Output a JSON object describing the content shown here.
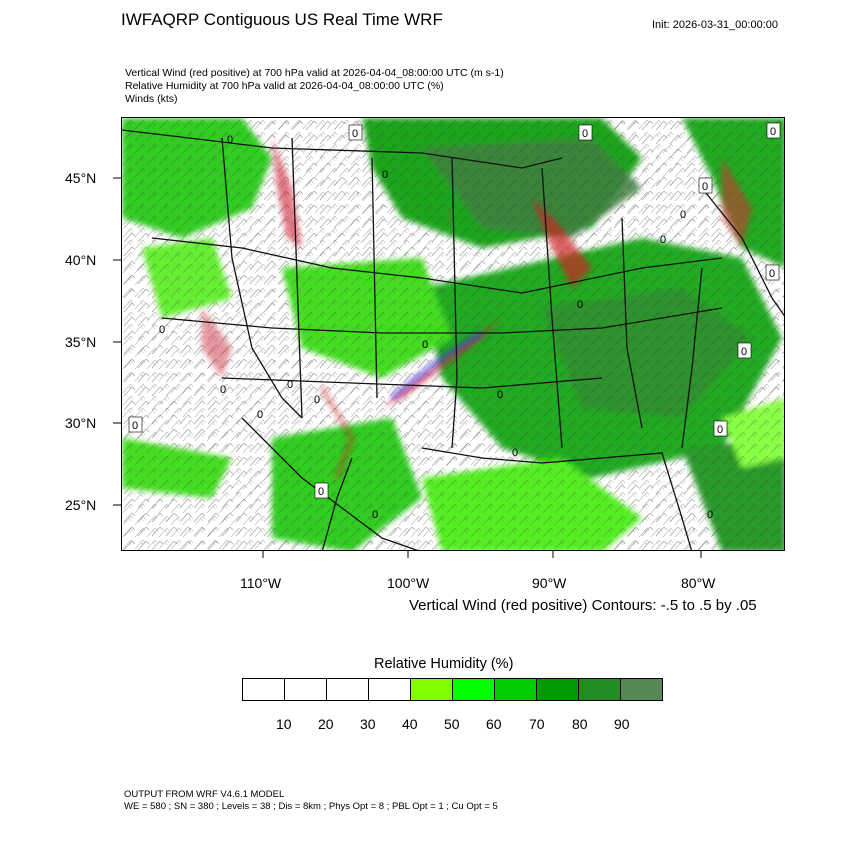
{
  "header": {
    "title": "IWFAQRP Contiguous US Real Time WRF",
    "init": "Init: 2026-03-31_00:00:00"
  },
  "fields": [
    "Vertical Wind (red positive) at 700 hPa valid at 2026-04-04_08:00:00 UTC   (m s-1)",
    "Relative Humidity at 700 hPa valid at 2026-04-04_08:00:00 UTC   (%)",
    "Winds   (kts)"
  ],
  "map": {
    "lat_labels": [
      "45°N",
      "40°N",
      "35°N",
      "30°N",
      "25°N"
    ],
    "lon_labels": [
      "110°W",
      "100°W",
      "90°W",
      "80°W"
    ],
    "contour_labels": [
      "0",
      "0",
      "0",
      "0",
      "0",
      "0",
      "0",
      "0",
      "0",
      "0",
      "0",
      "0",
      "0",
      "0",
      "0",
      "0",
      "0",
      "0",
      "0",
      "0",
      "0",
      "0",
      "0",
      "0"
    ]
  },
  "contour_note": "Vertical Wind (red positive) Contours: -.5 to .5 by .05",
  "legend": {
    "title": "Relative Humidity  (%)",
    "colors": [
      "#ffffff",
      "#ffffff",
      "#ffffff",
      "#ffffff",
      "#80ff00",
      "#00ff00",
      "#00cc00",
      "#009900",
      "#228b22",
      "#558855"
    ],
    "labels": [
      "10",
      "20",
      "30",
      "40",
      "50",
      "60",
      "70",
      "80",
      "90"
    ]
  },
  "footer": [
    "OUTPUT FROM WRF V4.6.1 MODEL",
    "WE = 580 ; SN = 380 ; Levels = 38 ; Dis = 8km ; Phys Opt = 8 ; PBL Opt = 1 ; Cu Opt = 5"
  ]
}
